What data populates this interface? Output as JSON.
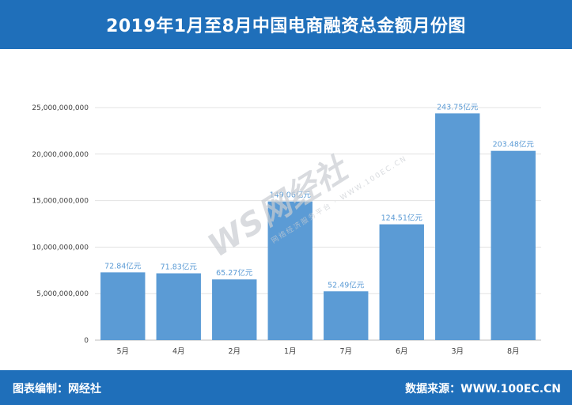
{
  "header": {
    "title": "2019年1月至8月中国电商融资总金额月份图"
  },
  "footer": {
    "left_text": "图表编制：网经社",
    "right_text": "数据来源：WWW.100EC.CN"
  },
  "watermark": {
    "logo_text": "WS网经社",
    "sub_text": "网络经济服务平台",
    "site_text": "WWW.100EC.CN"
  },
  "colors": {
    "header_bg": "#1f6fba",
    "bar": "#5b9bd5",
    "data_label": "#5b9bd5"
  },
  "chart_data": {
    "type": "bar",
    "title": "2019年1月至8月中国电商融资总金额月份图",
    "xlabel": "",
    "ylabel": "",
    "categories": [
      "5月",
      "4月",
      "2月",
      "1月",
      "7月",
      "6月",
      "3月",
      "8月"
    ],
    "values": [
      7284000000,
      7183000000,
      6527000000,
      14906000000,
      5249000000,
      12451000000,
      24375000000,
      20348000000
    ],
    "data_labels": [
      "72.84亿元",
      "71.83亿元",
      "65.27亿元",
      "149.06亿元",
      "52.49亿元",
      "124.51亿元",
      "243.75亿元",
      "203.48亿元"
    ],
    "ylim": [
      0,
      25000000000
    ],
    "yticks": [
      0,
      5000000000,
      10000000000,
      15000000000,
      20000000000,
      25000000000
    ],
    "ytick_labels": [
      "0",
      "5,000,000,000",
      "10,000,000,000",
      "15,000,000,000",
      "20,000,000,000",
      "25,000,000,000"
    ],
    "grid": true,
    "legend": "none"
  }
}
